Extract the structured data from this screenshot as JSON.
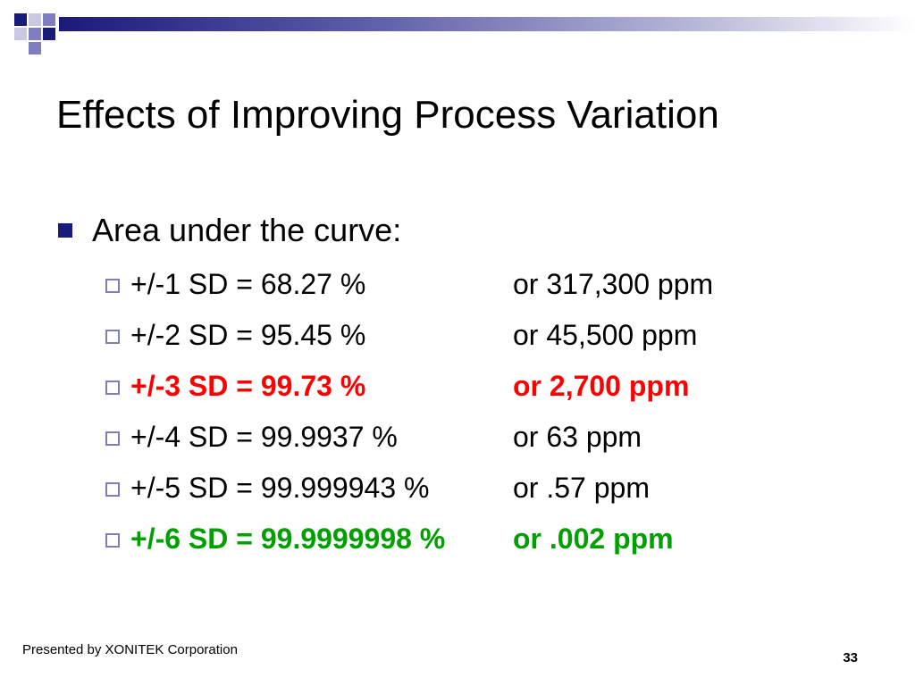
{
  "slide": {
    "title": "Effects of Improving Process Variation",
    "bullet": "Area under the curve:",
    "items": [
      {
        "lhs": "+/-1 SD = 68.27 %",
        "rhs": "or  317,300 ppm"
      },
      {
        "lhs": "+/-2 SD = 95.45 %",
        "rhs": "or  45,500 ppm"
      },
      {
        "lhs": "+/-3 SD = 99.73 %",
        "rhs": "or  2,700 ppm"
      },
      {
        "lhs": "+/-4 SD = 99.9937 %",
        "rhs": "or  63 ppm"
      },
      {
        "lhs": "+/-5 SD = 99.999943 %",
        "rhs": "or  .57 ppm"
      },
      {
        "lhs": "+/-6 SD = 99.9999998 %",
        "rhs": "or  .002 ppm"
      }
    ],
    "highlight_colors": {
      "red": "#ff0000",
      "green": "#00a000"
    }
  },
  "footer": {
    "presenter": "Presented by XONITEK Corporation",
    "page_number": "33"
  },
  "theme": {
    "accent": "#1a1a7a"
  }
}
